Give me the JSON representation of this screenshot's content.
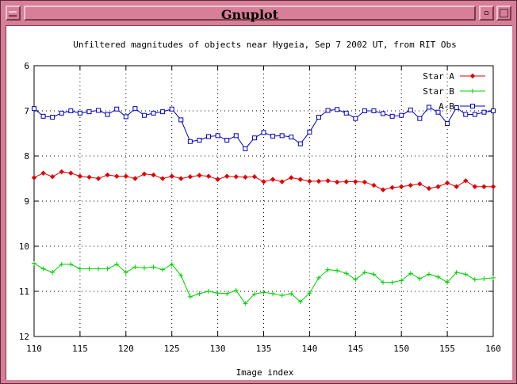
{
  "window": {
    "title": "Gnuplot"
  },
  "chart_data": {
    "type": "line",
    "title": "Unfiltered magnitudes of objects near Hygeia, Sep 7 2002 UT, from RIT Obs",
    "xlabel": "Image index",
    "ylabel": "",
    "xlim": [
      110,
      160
    ],
    "ylim": [
      12,
      6
    ],
    "y_reversed": true,
    "grid": true,
    "legend_position": "top-right",
    "x_ticks": [
      110,
      115,
      120,
      125,
      130,
      135,
      140,
      145,
      150,
      155,
      160
    ],
    "y_ticks": [
      6,
      7,
      8,
      9,
      10,
      11,
      12
    ],
    "x": [
      110,
      111,
      112,
      113,
      114,
      115,
      116,
      117,
      118,
      119,
      120,
      121,
      122,
      123,
      124,
      125,
      126,
      127,
      128,
      129,
      130,
      131,
      132,
      133,
      134,
      135,
      136,
      137,
      138,
      139,
      140,
      141,
      142,
      143,
      144,
      145,
      146,
      147,
      148,
      149,
      150,
      151,
      152,
      153,
      154,
      155,
      156,
      157,
      158,
      159,
      160
    ],
    "series": [
      {
        "name": "Star A",
        "color": "#e00000",
        "marker": "diamond",
        "values": [
          8.48,
          8.38,
          8.46,
          8.35,
          8.38,
          8.45,
          8.47,
          8.5,
          8.42,
          8.45,
          8.45,
          8.5,
          8.4,
          8.42,
          8.5,
          8.45,
          8.5,
          8.46,
          8.43,
          8.45,
          8.52,
          8.45,
          8.46,
          8.47,
          8.46,
          8.57,
          8.52,
          8.57,
          8.48,
          8.52,
          8.56,
          8.56,
          8.55,
          8.58,
          8.57,
          8.57,
          8.58,
          8.65,
          8.75,
          8.7,
          8.68,
          8.65,
          8.62,
          8.72,
          8.68,
          8.6,
          8.68,
          8.55,
          8.68,
          8.68,
          8.68
        ]
      },
      {
        "name": "Star B",
        "color": "#00d000",
        "marker": "plus",
        "values": [
          10.38,
          10.5,
          10.58,
          10.4,
          10.4,
          10.5,
          10.5,
          10.5,
          10.5,
          10.4,
          10.58,
          10.46,
          10.48,
          10.46,
          10.52,
          10.4,
          10.65,
          11.12,
          11.05,
          11.0,
          11.04,
          11.05,
          10.98,
          11.27,
          11.06,
          11.02,
          11.05,
          11.09,
          11.05,
          11.23,
          11.04,
          10.7,
          10.52,
          10.54,
          10.6,
          10.74,
          10.58,
          10.62,
          10.8,
          10.8,
          10.76,
          10.6,
          10.72,
          10.62,
          10.68,
          10.8,
          10.58,
          10.62,
          10.74,
          10.72,
          10.7
        ]
      },
      {
        "name": "A-B",
        "color": "#0000c0",
        "marker": "square",
        "values": [
          6.95,
          7.12,
          7.14,
          7.05,
          7.0,
          7.05,
          7.02,
          6.99,
          7.08,
          6.96,
          7.13,
          6.95,
          7.1,
          7.05,
          7.02,
          6.96,
          7.2,
          7.68,
          7.65,
          7.57,
          7.55,
          7.65,
          7.55,
          7.84,
          7.6,
          7.48,
          7.56,
          7.55,
          7.58,
          7.73,
          7.47,
          7.14,
          6.99,
          6.97,
          7.05,
          7.17,
          7.0,
          7.0,
          7.06,
          7.12,
          7.1,
          6.98,
          7.17,
          6.92,
          7.03,
          7.28,
          6.93,
          7.08,
          7.08,
          7.03,
          7.0
        ]
      }
    ]
  }
}
